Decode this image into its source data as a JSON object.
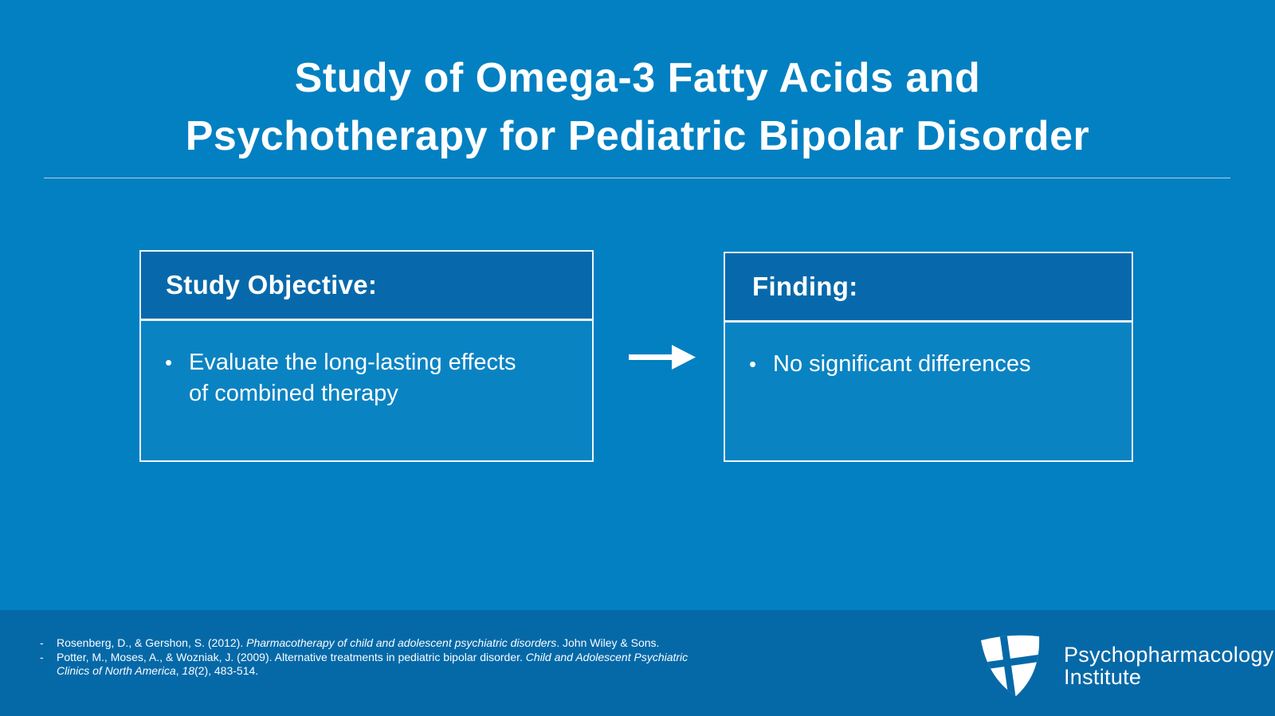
{
  "slide_title": {
    "line1": "Study of Omega-3 Fatty Acids and",
    "line2": "Psychotherapy for Pediatric Bipolar Disorder"
  },
  "objective_box": {
    "header": "Study Objective:",
    "bullet": "Evaluate the long-lasting effects of combined therapy"
  },
  "finding_box": {
    "header": "Finding:",
    "bullet": "No significant differences"
  },
  "markers": {
    "bullet": "•",
    "reference_dash": "-"
  },
  "icons": {
    "arrow_right": "right-arrow",
    "logo_shield": "shield-with-cross"
  },
  "references": [
    {
      "parts": [
        {
          "text": "Rosenberg, D., & Gershon, S. (2012). ",
          "italic": false
        },
        {
          "text": "Pharmacotherapy of child and adolescent psychiatric disorders",
          "italic": true
        },
        {
          "text": ". John Wiley & Sons.",
          "italic": false
        }
      ]
    },
    {
      "parts": [
        {
          "text": "Potter, M., Moses, A., & Wozniak, J. (2009). Alternative treatments in pediatric bipolar disorder. ",
          "italic": false
        },
        {
          "text": "Child and Adolescent Psychiatric Clinics of North America",
          "italic": true
        },
        {
          "text": ", ",
          "italic": false
        },
        {
          "text": "18",
          "italic": true
        },
        {
          "text": "(2), 483-514.",
          "italic": false
        }
      ]
    }
  ],
  "logo": {
    "name_line1": "Psychopharmacology",
    "name_line2": "Institute"
  },
  "colors": {
    "background": "#0280c1",
    "footer_band": "#0569a8",
    "box_header": "#0769ab",
    "box_body": "#0a83c3",
    "text": "#ffffff"
  }
}
